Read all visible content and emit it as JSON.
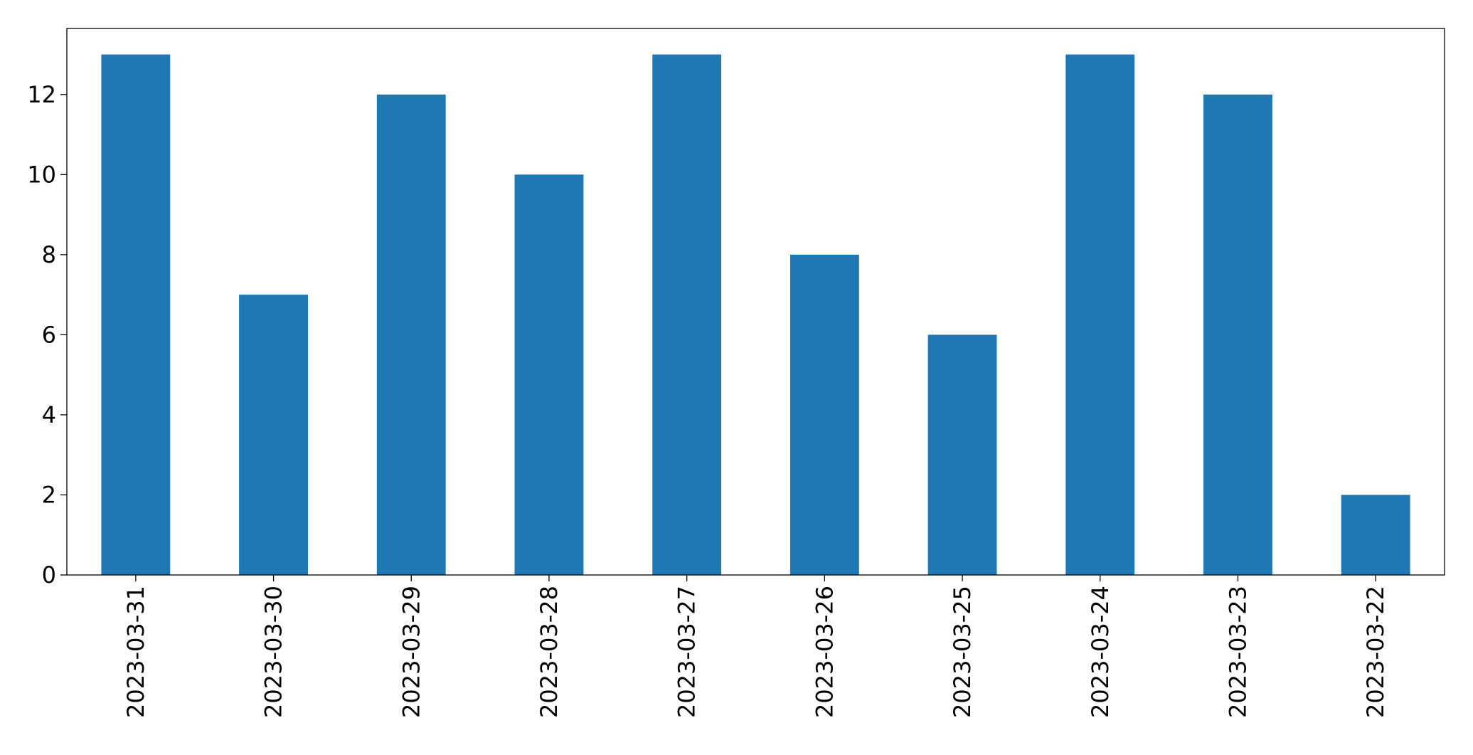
{
  "chart_data": {
    "type": "bar",
    "categories": [
      "2023-03-31",
      "2023-03-30",
      "2023-03-29",
      "2023-03-28",
      "2023-03-27",
      "2023-03-26",
      "2023-03-25",
      "2023-03-24",
      "2023-03-23",
      "2023-03-22"
    ],
    "values": [
      13,
      7,
      12,
      10,
      13,
      8,
      6,
      13,
      12,
      2
    ],
    "color": "#1f77b4",
    "ylim": [
      0,
      13.65
    ],
    "yticks": [
      0,
      2,
      4,
      6,
      8,
      10,
      12
    ],
    "grid": false
  }
}
